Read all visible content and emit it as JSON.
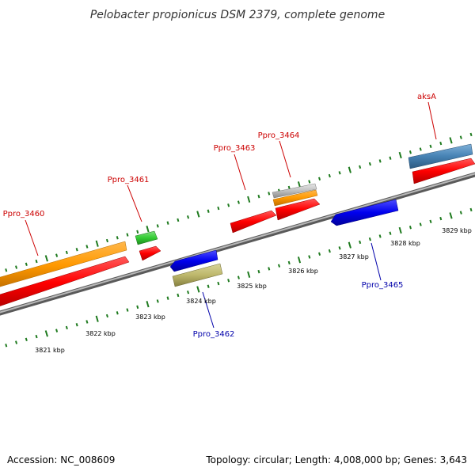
{
  "title": "Pelobacter propionicus DSM 2379, complete genome",
  "footer": {
    "accession": "Accession: NC_008609",
    "topology": "Topology: circular; Length: 4,008,000 bp; Genes: 3,643"
  },
  "colors": {
    "forward_gene_label": "#cc0000",
    "reverse_gene_label": "#0000aa",
    "tick": "#1e7a1e",
    "backbone": "#909090",
    "cds": "#ff0000",
    "gene_orange": "#ff9900",
    "gene_green": "#33cc33",
    "gene_blue": "#0000ee",
    "gene_khaki": "#bdb76b",
    "gene_grey": "#c0c0c0",
    "gene_steelblue": "#4682b4"
  },
  "gene_labels": [
    {
      "id": "ppro-3460",
      "text": "Ppro_3460",
      "strand": "forward"
    },
    {
      "id": "ppro-3461",
      "text": "Ppro_3461",
      "strand": "forward"
    },
    {
      "id": "ppro-3462",
      "text": "Ppro_3462",
      "strand": "reverse"
    },
    {
      "id": "ppro-3463",
      "text": "Ppro_3463",
      "strand": "forward"
    },
    {
      "id": "ppro-3464",
      "text": "Ppro_3464",
      "strand": "forward"
    },
    {
      "id": "ppro-3465",
      "text": "Ppro_3465",
      "strand": "reverse"
    },
    {
      "id": "aksa",
      "text": "aksA",
      "strand": "forward"
    }
  ],
  "kbp_labels": [
    "3821 kbp",
    "3822 kbp",
    "3823 kbp",
    "3824 kbp",
    "3825 kbp",
    "3826 kbp",
    "3827 kbp",
    "3828 kbp",
    "3829 kbp"
  ]
}
